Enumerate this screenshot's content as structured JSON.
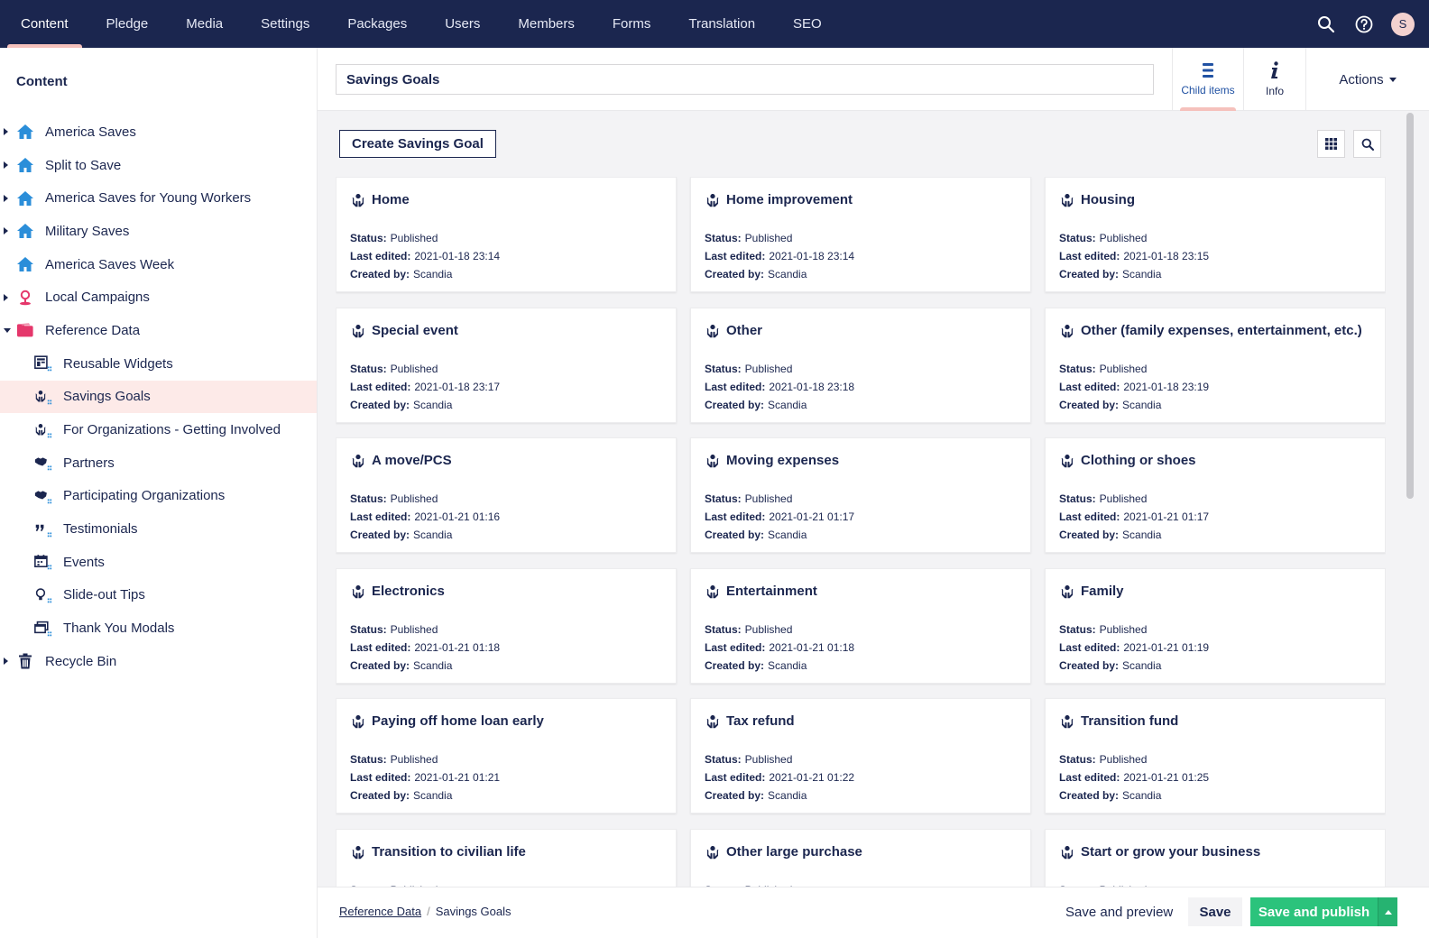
{
  "topnav": {
    "items": [
      "Content",
      "Pledge",
      "Media",
      "Settings",
      "Packages",
      "Users",
      "Members",
      "Forms",
      "Translation",
      "SEO"
    ],
    "active": "Content",
    "avatar_initial": "S",
    "icons": [
      "search-icon",
      "help-icon"
    ]
  },
  "sidebar": {
    "title": "Content",
    "items": [
      {
        "label": "America Saves",
        "level": 0,
        "caret": "right",
        "icon": "home-icon"
      },
      {
        "label": "Split to Save",
        "level": 0,
        "caret": "right",
        "icon": "home-icon"
      },
      {
        "label": "America Saves for Young Workers",
        "level": 0,
        "caret": "right",
        "icon": "home-icon"
      },
      {
        "label": "Military Saves",
        "level": 0,
        "caret": "right",
        "icon": "home-icon"
      },
      {
        "label": "America Saves Week",
        "level": 0,
        "caret": "",
        "icon": "home-icon"
      },
      {
        "label": "Local Campaigns",
        "level": 0,
        "caret": "right",
        "icon": "location-pin-icon"
      },
      {
        "label": "Reference Data",
        "level": 0,
        "caret": "down",
        "icon": "folder-icon"
      },
      {
        "label": "Reusable Widgets",
        "level": 1,
        "caret": "",
        "icon": "widget-list-icon"
      },
      {
        "label": "Savings Goals",
        "level": 1,
        "caret": "",
        "icon": "hand-plant-list-icon",
        "selected": true
      },
      {
        "label": "For Organizations - Getting Involved",
        "level": 1,
        "caret": "",
        "icon": "hand-plant-list-icon"
      },
      {
        "label": "Partners",
        "level": 1,
        "caret": "",
        "icon": "handshake-list-icon"
      },
      {
        "label": "Participating Organizations",
        "level": 1,
        "caret": "",
        "icon": "handshake-list-icon"
      },
      {
        "label": "Testimonials",
        "level": 1,
        "caret": "",
        "icon": "quote-list-icon"
      },
      {
        "label": "Events",
        "level": 1,
        "caret": "",
        "icon": "calendar-list-icon"
      },
      {
        "label": "Slide-out Tips",
        "level": 1,
        "caret": "",
        "icon": "lightbulb-list-icon"
      },
      {
        "label": "Thank You Modals",
        "level": 1,
        "caret": "",
        "icon": "windows-list-icon"
      },
      {
        "label": "Recycle Bin",
        "level": 0,
        "caret": "right",
        "icon": "trash-icon"
      }
    ]
  },
  "header": {
    "name_value": "Savings Goals",
    "apps": [
      {
        "label": "Child items",
        "icon": "list-icon",
        "active": true
      },
      {
        "label": "Info",
        "icon": "info-icon",
        "active": false
      }
    ],
    "actions_label": "Actions"
  },
  "toolbar": {
    "create_label": "Create Savings Goal",
    "icons": [
      "grid-view-icon",
      "search-icon"
    ]
  },
  "meta_labels": {
    "status": "Status:",
    "last_edited": "Last edited:",
    "created_by": "Created by:"
  },
  "cards": [
    {
      "title": "Home",
      "status": "Published",
      "last_edited": "2021-01-18 23:14",
      "created_by": "Scandia"
    },
    {
      "title": "Home improvement",
      "status": "Published",
      "last_edited": "2021-01-18 23:14",
      "created_by": "Scandia"
    },
    {
      "title": "Housing",
      "status": "Published",
      "last_edited": "2021-01-18 23:15",
      "created_by": "Scandia"
    },
    {
      "title": "Special event",
      "status": "Published",
      "last_edited": "2021-01-18 23:17",
      "created_by": "Scandia"
    },
    {
      "title": "Other",
      "status": "Published",
      "last_edited": "2021-01-18 23:18",
      "created_by": "Scandia"
    },
    {
      "title": "Other (family expenses, entertainment, etc.)",
      "status": "Published",
      "last_edited": "2021-01-18 23:19",
      "created_by": "Scandia"
    },
    {
      "title": "A move/PCS",
      "status": "Published",
      "last_edited": "2021-01-21 01:16",
      "created_by": "Scandia"
    },
    {
      "title": "Moving expenses",
      "status": "Published",
      "last_edited": "2021-01-21 01:17",
      "created_by": "Scandia"
    },
    {
      "title": "Clothing or shoes",
      "status": "Published",
      "last_edited": "2021-01-21 01:17",
      "created_by": "Scandia"
    },
    {
      "title": "Electronics",
      "status": "Published",
      "last_edited": "2021-01-21 01:18",
      "created_by": "Scandia"
    },
    {
      "title": "Entertainment",
      "status": "Published",
      "last_edited": "2021-01-21 01:18",
      "created_by": "Scandia"
    },
    {
      "title": "Family",
      "status": "Published",
      "last_edited": "2021-01-21 01:19",
      "created_by": "Scandia"
    },
    {
      "title": "Paying off home loan early",
      "status": "Published",
      "last_edited": "2021-01-21 01:21",
      "created_by": "Scandia"
    },
    {
      "title": "Tax refund",
      "status": "Published",
      "last_edited": "2021-01-21 01:22",
      "created_by": "Scandia"
    },
    {
      "title": "Transition fund",
      "status": "Published",
      "last_edited": "2021-01-21 01:25",
      "created_by": "Scandia"
    },
    {
      "title": "Transition to civilian life",
      "status": "Published",
      "last_edited": "",
      "created_by": ""
    },
    {
      "title": "Other large purchase",
      "status": "Published",
      "last_edited": "",
      "created_by": ""
    },
    {
      "title": "Start or grow your business",
      "status": "Published",
      "last_edited": "",
      "created_by": ""
    }
  ],
  "footer": {
    "breadcrumb": [
      "Reference Data",
      "Savings Goals"
    ],
    "breadcrumb_sep": "/",
    "save_preview_label": "Save and preview",
    "save_label": "Save",
    "publish_label": "Save and publish"
  },
  "colors": {
    "topbar": "#1b264f",
    "selected_bg": "#fdeae8",
    "accent_pink": "#f5c1bc",
    "publish_green": "#2bc37c",
    "home_icon_blue": "#2b8ed9",
    "pink_icon": "#e5376b"
  }
}
